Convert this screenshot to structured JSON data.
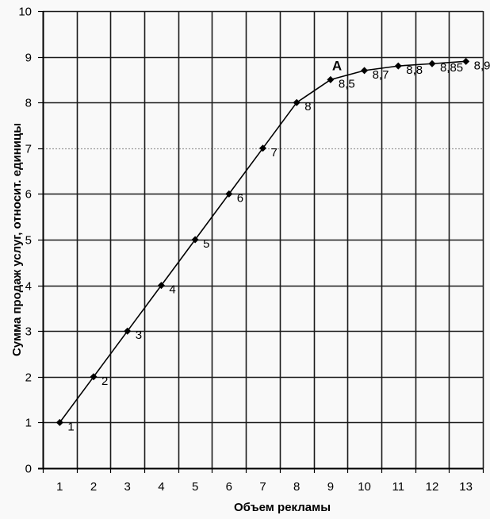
{
  "chart_data": {
    "type": "line",
    "title": "",
    "xlabel": "Объем рекламы",
    "ylabel": "Сумма продаж услуг, относит. единицы",
    "categories": [
      "1",
      "2",
      "3",
      "4",
      "5",
      "6",
      "7",
      "8",
      "9",
      "10",
      "11",
      "12",
      "13"
    ],
    "series": [
      {
        "name": "Сумма продаж услуг",
        "values": [
          1,
          2,
          3,
          4,
          5,
          6,
          7,
          8,
          8.5,
          8.7,
          8.8,
          8.85,
          8.9
        ],
        "data_labels": [
          "1",
          "2",
          "3",
          "4",
          "5",
          "6",
          "7",
          "8",
          "8,5",
          "8,7",
          "8,8",
          "8,85",
          "8,9"
        ],
        "marker": "diamond",
        "color": "#000000"
      }
    ],
    "ylim": [
      0,
      10
    ],
    "yticks": [
      "0",
      "1",
      "2",
      "3",
      "4",
      "5",
      "6",
      "7",
      "8",
      "9",
      "10"
    ],
    "grid": true,
    "legend": "none",
    "annotations": [
      {
        "text": "A",
        "near_category": "9",
        "near_value": 8.5
      }
    ]
  },
  "colors": {
    "background": "#f9f9f9",
    "grid": "#1a1a1a",
    "line": "#000000"
  }
}
